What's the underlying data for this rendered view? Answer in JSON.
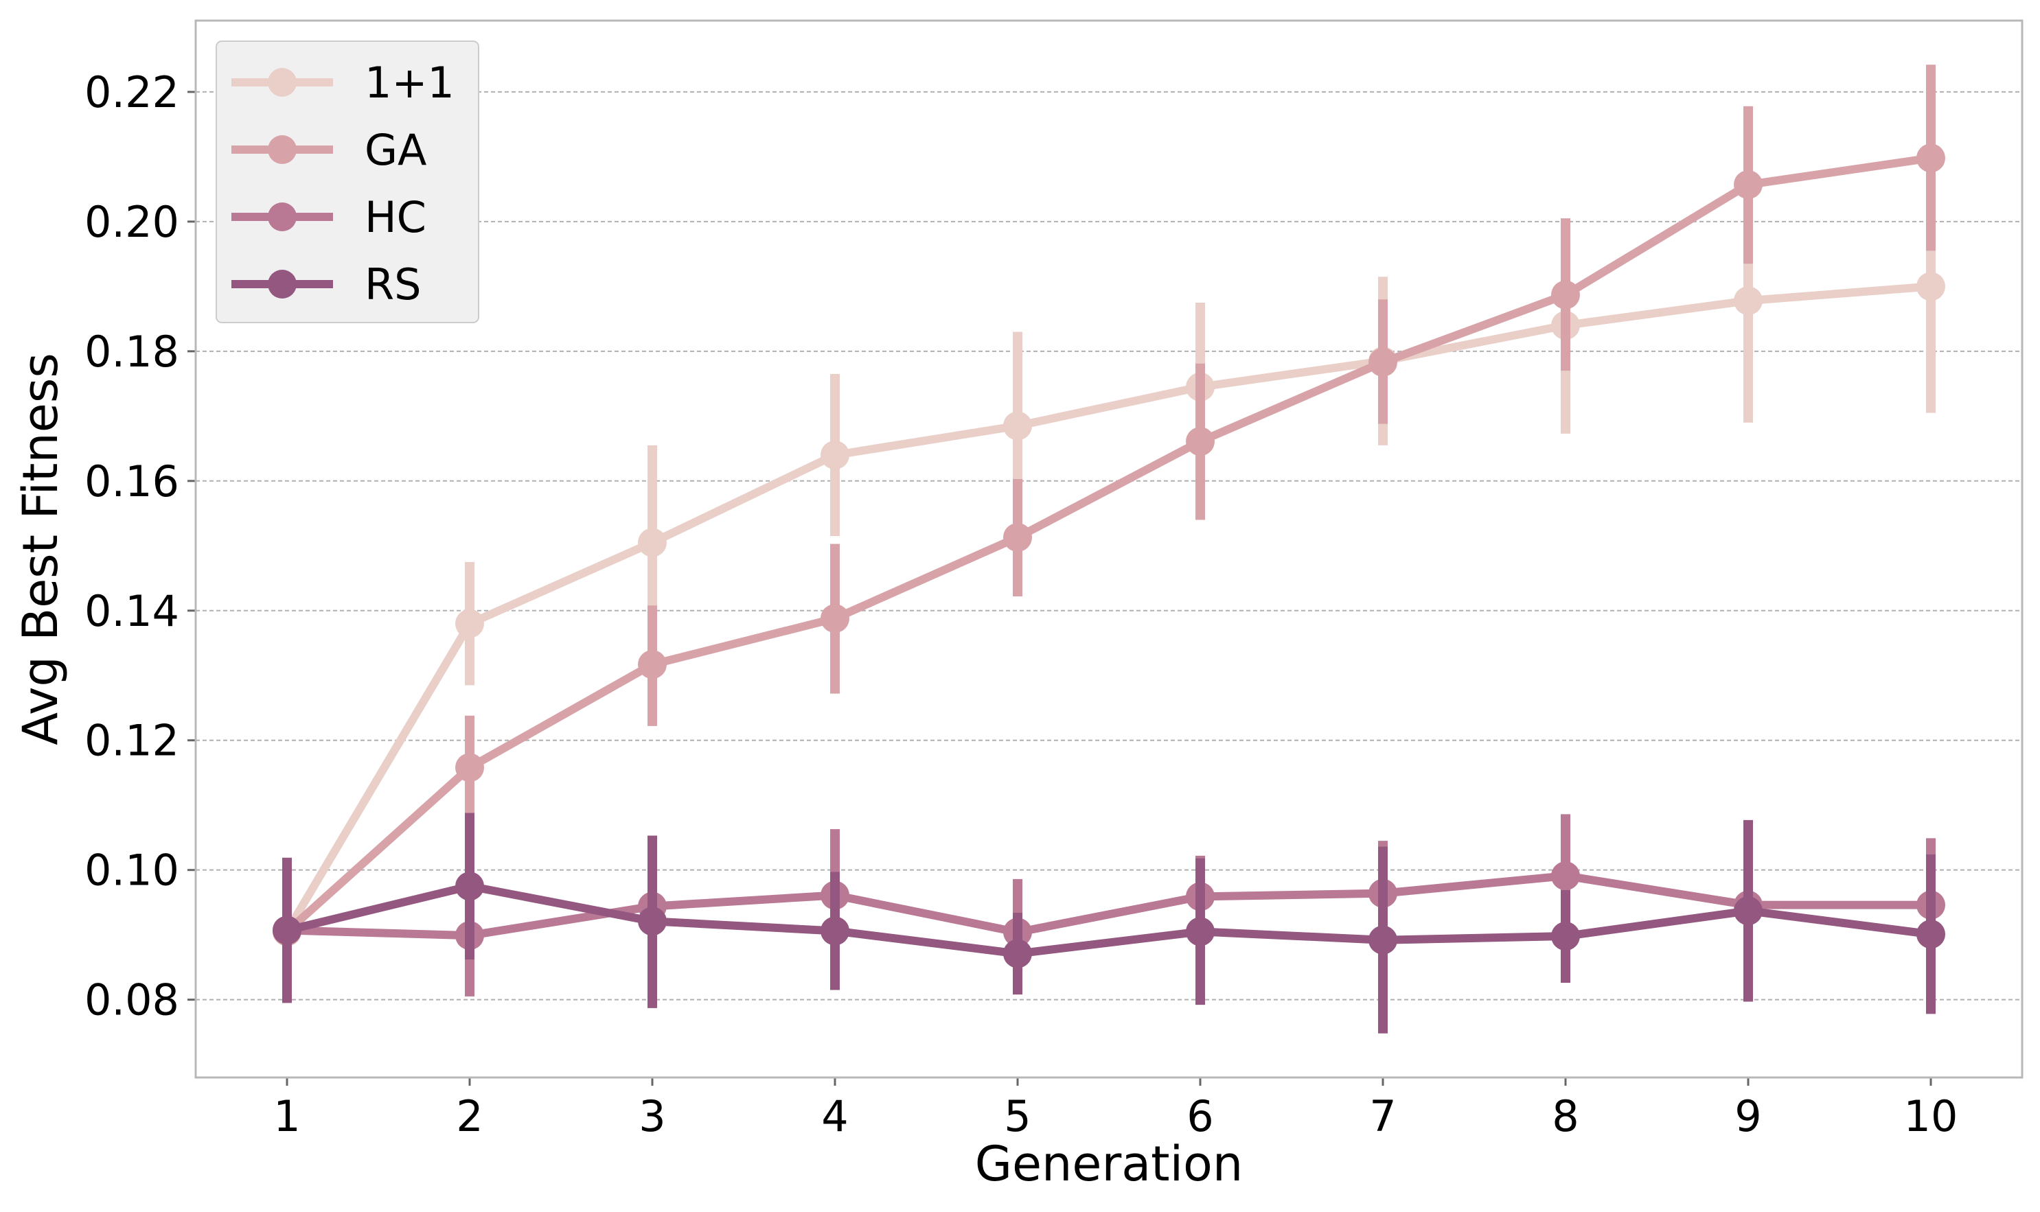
{
  "chart_data": {
    "type": "line",
    "xlabel": "Generation",
    "ylabel": "Avg Best Fitness",
    "x": [
      1,
      2,
      3,
      4,
      5,
      6,
      7,
      8,
      9,
      10
    ],
    "xlim": [
      0.5,
      10.5
    ],
    "ylim": [
      0.068,
      0.231
    ],
    "x_ticks": [
      "1",
      "2",
      "3",
      "4",
      "5",
      "6",
      "7",
      "8",
      "9",
      "10"
    ],
    "y_ticks": [
      0.08,
      0.1,
      0.12,
      0.14,
      0.16,
      0.18,
      0.2,
      0.22
    ],
    "y_tick_labels": [
      "0.08",
      "0.10",
      "0.12",
      "0.14",
      "0.16",
      "0.18",
      "0.20",
      "0.22"
    ],
    "grid": "horizontal dashed",
    "legend_position": "top-left",
    "series": [
      {
        "name": "1+1",
        "color": "#e9cfc7",
        "values": [
          0.0905,
          0.138,
          0.1505,
          0.164,
          0.1685,
          0.1745,
          0.1785,
          0.184,
          0.1878,
          0.19
        ],
        "err_low": [
          0.0795,
          0.1285,
          0.1375,
          0.1515,
          0.1545,
          0.1615,
          0.1655,
          0.1673,
          0.169,
          0.1705
        ],
        "err_high": [
          0.1015,
          0.1475,
          0.1655,
          0.1765,
          0.183,
          0.1875,
          0.1915,
          0.2003,
          0.2066,
          0.2095
        ]
      },
      {
        "name": "GA",
        "color": "#d8a3a8",
        "values": [
          0.0905,
          0.1158,
          0.1317,
          0.1388,
          0.1513,
          0.1661,
          0.1783,
          0.1887,
          0.2057,
          0.2098
        ],
        "err_low": [
          0.0795,
          0.1078,
          0.1222,
          0.1272,
          0.1422,
          0.154,
          0.1688,
          0.177,
          0.1935,
          0.1955
        ],
        "err_high": [
          0.1015,
          0.1238,
          0.1408,
          0.1503,
          0.1603,
          0.1781,
          0.188,
          0.2005,
          0.2178,
          0.2242
        ]
      },
      {
        "name": "HC",
        "color": "#b97894",
        "values": [
          0.0907,
          0.0899,
          0.0944,
          0.0961,
          0.0904,
          0.0959,
          0.0964,
          0.0991,
          0.0946,
          0.0946
        ],
        "err_low": [
          0.0797,
          0.0805,
          0.0835,
          0.0862,
          0.0822,
          0.0869,
          0.0855,
          0.0897,
          0.0855,
          0.0844
        ],
        "err_high": [
          0.1017,
          0.0992,
          0.1053,
          0.1063,
          0.0986,
          0.1022,
          0.1045,
          0.1086,
          0.1037,
          0.1049
        ]
      },
      {
        "name": "RS",
        "color": "#935780",
        "values": [
          0.0907,
          0.0975,
          0.0921,
          0.0906,
          0.0871,
          0.0905,
          0.0892,
          0.0898,
          0.0937,
          0.0901
        ],
        "err_low": [
          0.0795,
          0.0862,
          0.0787,
          0.0815,
          0.0808,
          0.0792,
          0.0748,
          0.0826,
          0.0797,
          0.0778
        ],
        "err_high": [
          0.1019,
          0.1088,
          0.1053,
          0.0997,
          0.0934,
          0.1018,
          0.1036,
          0.0969,
          0.1077,
          0.1024
        ]
      }
    ]
  }
}
